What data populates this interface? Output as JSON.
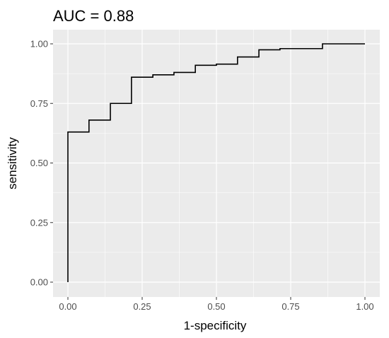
{
  "chart_data": {
    "type": "line",
    "title": "AUC = 0.88",
    "xlabel": "1-specificity",
    "ylabel": "sensitivity",
    "xlim": [
      0,
      1
    ],
    "ylim": [
      0,
      1
    ],
    "x_ticks": [
      "0.00",
      "0.25",
      "0.50",
      "0.75",
      "1.00"
    ],
    "y_ticks": [
      "0.00",
      "0.25",
      "0.50",
      "0.75",
      "1.00"
    ],
    "grid": true,
    "legend": "none",
    "colors": {
      "panel": "#ebebeb",
      "grid": "#ffffff",
      "line": "#000000",
      "tick_text": "#4d4d4d"
    },
    "series": [
      {
        "x": [
          0,
          0,
          0.071,
          0.071,
          0.143,
          0.143,
          0.214,
          0.214,
          0.286,
          0.286,
          0.357,
          0.357,
          0.429,
          0.429,
          0.5,
          0.5,
          0.571,
          0.571,
          0.643,
          0.643,
          0.714,
          0.714,
          0.857,
          0.857,
          1.0
        ],
        "y": [
          0,
          0.63,
          0.63,
          0.68,
          0.68,
          0.75,
          0.75,
          0.86,
          0.86,
          0.87,
          0.87,
          0.88,
          0.88,
          0.91,
          0.91,
          0.915,
          0.915,
          0.945,
          0.945,
          0.975,
          0.975,
          0.98,
          0.98,
          1.0,
          1.0
        ]
      }
    ]
  }
}
